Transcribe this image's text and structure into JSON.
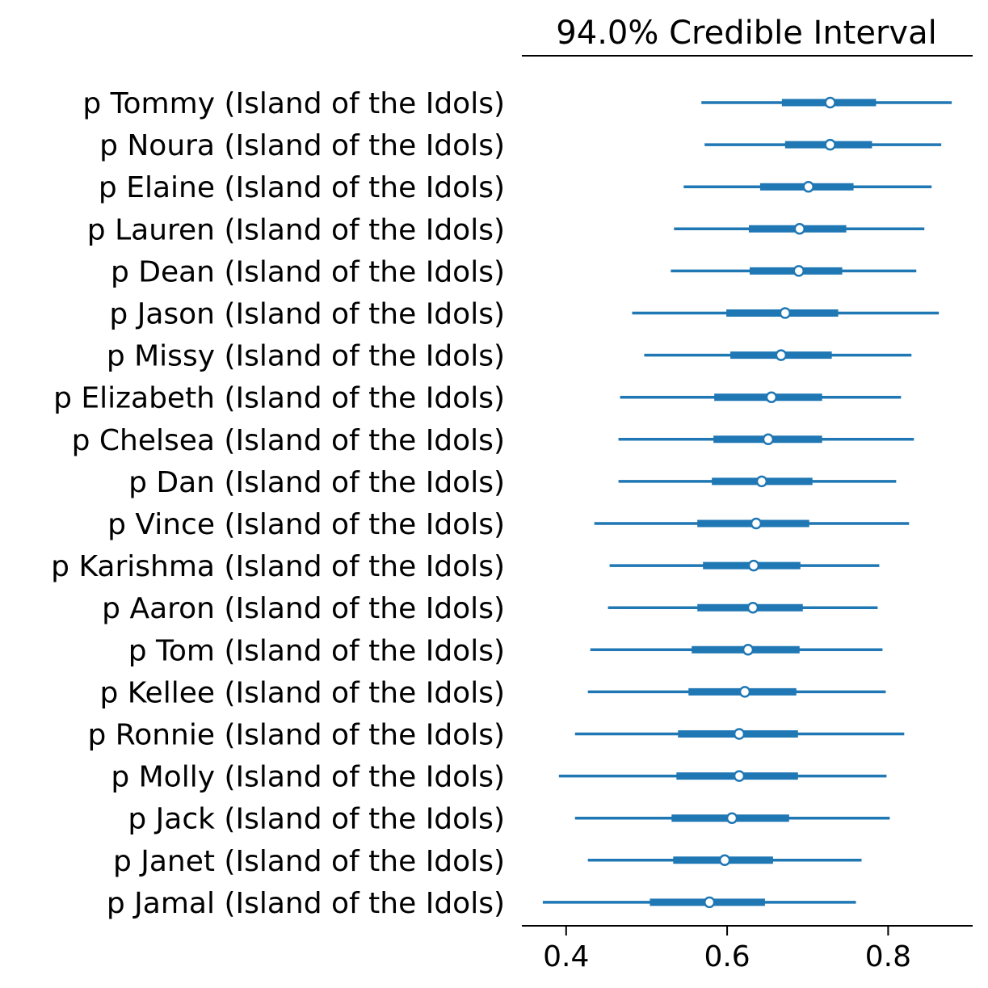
{
  "chart_data": {
    "type": "forest",
    "title": "94.0% Credible Interval",
    "xlabel": "",
    "ylabel": "",
    "xlim": [
      0.345,
      0.905
    ],
    "xticks": [
      0.4,
      0.6,
      0.8
    ],
    "xtick_labels": [
      "0.4",
      "0.6",
      "0.8"
    ],
    "grid": false,
    "colors": {
      "line": "#1f77b4",
      "marker_fill": "#ffffff",
      "axis": "#000000"
    },
    "rows": [
      {
        "label": "p Tommy (Island of the Idols)",
        "hdi_low": 0.568,
        "iqr_low": 0.668,
        "median": 0.728,
        "iqr_high": 0.785,
        "hdi_high": 0.879
      },
      {
        "label": "p Noura (Island of the Idols)",
        "hdi_low": 0.572,
        "iqr_low": 0.672,
        "median": 0.728,
        "iqr_high": 0.78,
        "hdi_high": 0.866
      },
      {
        "label": "p Elaine (Island of the Idols)",
        "hdi_low": 0.546,
        "iqr_low": 0.641,
        "median": 0.701,
        "iqr_high": 0.757,
        "hdi_high": 0.854
      },
      {
        "label": "p Lauren (Island of the Idols)",
        "hdi_low": 0.534,
        "iqr_low": 0.627,
        "median": 0.69,
        "iqr_high": 0.748,
        "hdi_high": 0.845
      },
      {
        "label": "p Dean (Island of the Idols)",
        "hdi_low": 0.53,
        "iqr_low": 0.628,
        "median": 0.689,
        "iqr_high": 0.743,
        "hdi_high": 0.835
      },
      {
        "label": "p Jason (Island of the Idols)",
        "hdi_low": 0.482,
        "iqr_low": 0.599,
        "median": 0.672,
        "iqr_high": 0.738,
        "hdi_high": 0.863
      },
      {
        "label": "p Missy (Island of the Idols)",
        "hdi_low": 0.497,
        "iqr_low": 0.604,
        "median": 0.667,
        "iqr_high": 0.73,
        "hdi_high": 0.829
      },
      {
        "label": "p Elizabeth (Island of the Idols)",
        "hdi_low": 0.467,
        "iqr_low": 0.584,
        "median": 0.655,
        "iqr_high": 0.718,
        "hdi_high": 0.816
      },
      {
        "label": "p Chelsea (Island of the Idols)",
        "hdi_low": 0.465,
        "iqr_low": 0.583,
        "median": 0.651,
        "iqr_high": 0.718,
        "hdi_high": 0.832
      },
      {
        "label": "p Dan (Island of the Idols)",
        "hdi_low": 0.465,
        "iqr_low": 0.581,
        "median": 0.643,
        "iqr_high": 0.706,
        "hdi_high": 0.81
      },
      {
        "label": "p Vince (Island of the Idols)",
        "hdi_low": 0.435,
        "iqr_low": 0.563,
        "median": 0.636,
        "iqr_high": 0.702,
        "hdi_high": 0.826
      },
      {
        "label": "p Karishma (Island of the Idols)",
        "hdi_low": 0.454,
        "iqr_low": 0.57,
        "median": 0.633,
        "iqr_high": 0.691,
        "hdi_high": 0.789
      },
      {
        "label": "p Aaron (Island of the Idols)",
        "hdi_low": 0.452,
        "iqr_low": 0.563,
        "median": 0.632,
        "iqr_high": 0.694,
        "hdi_high": 0.787
      },
      {
        "label": "p Tom (Island of the Idols)",
        "hdi_low": 0.43,
        "iqr_low": 0.556,
        "median": 0.626,
        "iqr_high": 0.69,
        "hdi_high": 0.793
      },
      {
        "label": "p Kellee (Island of the Idols)",
        "hdi_low": 0.427,
        "iqr_low": 0.552,
        "median": 0.622,
        "iqr_high": 0.686,
        "hdi_high": 0.797
      },
      {
        "label": "p Ronnie (Island of the Idols)",
        "hdi_low": 0.411,
        "iqr_low": 0.539,
        "median": 0.615,
        "iqr_high": 0.688,
        "hdi_high": 0.82
      },
      {
        "label": "p Molly (Island of the Idols)",
        "hdi_low": 0.391,
        "iqr_low": 0.537,
        "median": 0.615,
        "iqr_high": 0.688,
        "hdi_high": 0.798
      },
      {
        "label": "p Jack (Island of the Idols)",
        "hdi_low": 0.411,
        "iqr_low": 0.531,
        "median": 0.606,
        "iqr_high": 0.677,
        "hdi_high": 0.802
      },
      {
        "label": "p Janet (Island of the Idols)",
        "hdi_low": 0.427,
        "iqr_low": 0.533,
        "median": 0.597,
        "iqr_high": 0.657,
        "hdi_high": 0.767
      },
      {
        "label": "p Jamal (Island of the Idols)",
        "hdi_low": 0.371,
        "iqr_low": 0.504,
        "median": 0.578,
        "iqr_high": 0.647,
        "hdi_high": 0.76
      }
    ]
  }
}
